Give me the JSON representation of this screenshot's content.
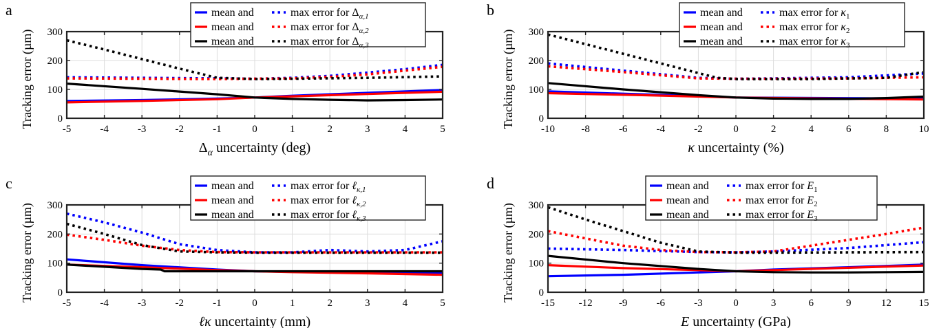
{
  "chart_data": [
    {
      "panel_label": "a",
      "type": "line",
      "xlabel_sym": "Δ",
      "xlabel_sub": "α",
      "xlabel_rest": " uncertainty (deg)",
      "ylabel": "Tracking error (µm)",
      "xlim": [
        -5,
        5
      ],
      "ylim": [
        0,
        300
      ],
      "xticks": [
        -5,
        -4,
        -3,
        -2,
        -1,
        0,
        1,
        2,
        3,
        4,
        5
      ],
      "yticks": [
        0,
        100,
        200,
        300
      ],
      "grid": true,
      "legend_position": "top",
      "legend": [
        {
          "mean_label": "mean and",
          "max_label": "max error for",
          "sym": "Δ",
          "sub": "α,1",
          "color": "#0000ff"
        },
        {
          "mean_label": "mean and",
          "max_label": "max error for",
          "sym": "Δ",
          "sub": "α,2",
          "color": "#ff0000"
        },
        {
          "mean_label": "mean and",
          "max_label": "max error for",
          "sym": "Δ",
          "sub": "α,3",
          "color": "#000000"
        }
      ],
      "series": [
        {
          "kind": "mean",
          "color": "#0000ff",
          "x": [
            -5,
            -3,
            -1,
            0,
            1,
            3,
            5
          ],
          "y": [
            60,
            63,
            68,
            72,
            78,
            88,
            98
          ]
        },
        {
          "kind": "mean",
          "color": "#ff0000",
          "x": [
            -5,
            -3,
            -1,
            0,
            1,
            3,
            5
          ],
          "y": [
            55,
            60,
            66,
            72,
            76,
            84,
            92
          ]
        },
        {
          "kind": "mean",
          "color": "#000000",
          "x": [
            -5,
            -3,
            -1,
            0,
            1,
            2,
            3,
            4,
            5
          ],
          "y": [
            120,
            102,
            83,
            72,
            67,
            64,
            62,
            63,
            65
          ]
        },
        {
          "kind": "max",
          "color": "#0000ff",
          "x": [
            -5,
            -3,
            -1,
            0,
            1,
            2,
            3,
            4,
            5
          ],
          "y": [
            142,
            140,
            138,
            137,
            140,
            147,
            158,
            170,
            185
          ]
        },
        {
          "kind": "max",
          "color": "#ff0000",
          "x": [
            -5,
            -3,
            -1,
            0,
            1,
            2,
            3,
            4,
            5
          ],
          "y": [
            138,
            137,
            136,
            137,
            138,
            143,
            152,
            165,
            178
          ]
        },
        {
          "kind": "max",
          "color": "#000000",
          "x": [
            -5,
            -4,
            -3,
            -2,
            -1,
            0,
            1,
            3,
            5
          ],
          "y": [
            270,
            238,
            205,
            172,
            140,
            136,
            137,
            140,
            145
          ]
        }
      ]
    },
    {
      "panel_label": "b",
      "type": "line",
      "xlabel_sym": "κ",
      "xlabel_sub": "",
      "xlabel_rest": " uncertainty (%)",
      "ylabel": "Tracking error (µm)",
      "xlim": [
        -10,
        10
      ],
      "ylim": [
        0,
        300
      ],
      "xticks": [
        -10,
        -8,
        -6,
        -4,
        -2,
        0,
        2,
        4,
        6,
        8,
        10
      ],
      "yticks": [
        0,
        100,
        200,
        300
      ],
      "grid": true,
      "legend_position": "top-right",
      "legend": [
        {
          "mean_label": "mean and",
          "max_label": "max error for",
          "sym": "κ",
          "sub": "1",
          "color": "#0000ff"
        },
        {
          "mean_label": "mean and",
          "max_label": "max error for",
          "sym": "κ",
          "sub": "2",
          "color": "#ff0000"
        },
        {
          "mean_label": "mean and",
          "max_label": "max error for",
          "sym": "κ",
          "sub": "3",
          "color": "#000000"
        }
      ],
      "series": [
        {
          "kind": "mean",
          "color": "#0000ff",
          "x": [
            -10,
            -5,
            0,
            5,
            10
          ],
          "y": [
            93,
            83,
            72,
            70,
            68
          ]
        },
        {
          "kind": "mean",
          "color": "#ff0000",
          "x": [
            -10,
            -5,
            0,
            5,
            10
          ],
          "y": [
            87,
            80,
            72,
            68,
            65
          ]
        },
        {
          "kind": "mean",
          "color": "#000000",
          "x": [
            -10,
            -6,
            -2,
            0,
            2,
            4,
            6,
            8,
            10
          ],
          "y": [
            122,
            100,
            80,
            72,
            68,
            67,
            67,
            70,
            75
          ]
        },
        {
          "kind": "max",
          "color": "#0000ff",
          "x": [
            -10,
            -6,
            -2,
            0,
            2,
            6,
            10
          ],
          "y": [
            190,
            165,
            140,
            137,
            138,
            142,
            155
          ]
        },
        {
          "kind": "max",
          "color": "#ff0000",
          "x": [
            -10,
            -6,
            -2,
            0,
            2,
            6,
            10
          ],
          "y": [
            180,
            160,
            138,
            137,
            137,
            138,
            142
          ]
        },
        {
          "kind": "max",
          "color": "#000000",
          "x": [
            -10,
            -7,
            -4,
            -1,
            0,
            4,
            8,
            10
          ],
          "y": [
            290,
            240,
            190,
            140,
            136,
            136,
            140,
            160
          ]
        }
      ]
    },
    {
      "panel_label": "c",
      "type": "line",
      "xlabel_sym": "ℓκ",
      "xlabel_sub": "",
      "xlabel_rest": " uncertainty (mm)",
      "ylabel": "Tracking error (µm)",
      "xlim": [
        -5,
        5
      ],
      "ylim": [
        0,
        300
      ],
      "xticks": [
        -5,
        -4,
        -3,
        -2,
        -1,
        0,
        1,
        2,
        3,
        4,
        5
      ],
      "yticks": [
        0,
        100,
        200,
        300
      ],
      "grid": true,
      "legend_position": "top",
      "legend": [
        {
          "mean_label": "mean and",
          "max_label": "max error for",
          "sym": "ℓ",
          "sub": "κ,1",
          "color": "#0000ff"
        },
        {
          "mean_label": "mean and",
          "max_label": "max error for",
          "sym": "ℓ",
          "sub": "κ,2",
          "color": "#ff0000"
        },
        {
          "mean_label": "mean and",
          "max_label": "max error for",
          "sym": "ℓ",
          "sub": "κ,3",
          "color": "#000000"
        }
      ],
      "series": [
        {
          "kind": "mean",
          "color": "#0000ff",
          "x": [
            -5,
            -3,
            -1,
            0,
            1,
            3,
            5
          ],
          "y": [
            113,
            93,
            78,
            72,
            70,
            68,
            66
          ]
        },
        {
          "kind": "mean",
          "color": "#ff0000",
          "x": [
            -5,
            -3,
            -1,
            0,
            1,
            3,
            5
          ],
          "y": [
            95,
            86,
            76,
            72,
            69,
            65,
            60
          ]
        },
        {
          "kind": "mean",
          "color": "#000000",
          "x": [
            -5,
            -3,
            -2.5,
            -2.4,
            -1,
            0,
            2,
            5
          ],
          "y": [
            95,
            80,
            78,
            72,
            72,
            72,
            72,
            72
          ]
        },
        {
          "kind": "max",
          "color": "#0000ff",
          "x": [
            -5,
            -4,
            -3,
            -2,
            -1,
            0,
            1,
            2,
            3,
            4,
            5
          ],
          "y": [
            270,
            240,
            205,
            165,
            145,
            137,
            137,
            145,
            140,
            145,
            175
          ]
        },
        {
          "kind": "max",
          "color": "#ff0000",
          "x": [
            -5,
            -4,
            -3,
            -2,
            -1,
            0,
            2,
            5
          ],
          "y": [
            198,
            180,
            160,
            145,
            138,
            137,
            137,
            137
          ]
        },
        {
          "kind": "max",
          "color": "#000000",
          "x": [
            -5,
            -4,
            -3,
            -2,
            -1,
            0,
            2,
            5
          ],
          "y": [
            235,
            200,
            162,
            140,
            137,
            136,
            136,
            136
          ]
        }
      ]
    },
    {
      "panel_label": "d",
      "type": "line",
      "xlabel_sym": "E",
      "xlabel_sub": "",
      "xlabel_rest": " uncertainty (GPa)",
      "ylabel": "Tracking error (µm)",
      "xlim": [
        -15,
        15
      ],
      "ylim": [
        0,
        300
      ],
      "xticks": [
        -15,
        -12,
        -9,
        -6,
        -3,
        0,
        3,
        6,
        9,
        12,
        15
      ],
      "yticks": [
        0,
        100,
        200,
        300
      ],
      "grid": true,
      "legend_position": "top",
      "legend": [
        {
          "mean_label": "mean and",
          "max_label": "max error for",
          "sym": "E",
          "sub": "1",
          "color": "#0000ff"
        },
        {
          "mean_label": "mean and",
          "max_label": "max error for",
          "sym": "E",
          "sub": "2",
          "color": "#ff0000"
        },
        {
          "mean_label": "mean and",
          "max_label": "max error for",
          "sym": "E",
          "sub": "3",
          "color": "#000000"
        }
      ],
      "series": [
        {
          "kind": "mean",
          "color": "#0000ff",
          "x": [
            -15,
            -9,
            -3,
            0,
            3,
            9,
            15
          ],
          "y": [
            55,
            60,
            68,
            72,
            78,
            86,
            95
          ]
        },
        {
          "kind": "mean",
          "color": "#ff0000",
          "x": [
            -15,
            -9,
            -3,
            0,
            3,
            9,
            15
          ],
          "y": [
            93,
            83,
            76,
            72,
            76,
            84,
            92
          ]
        },
        {
          "kind": "mean",
          "color": "#000000",
          "x": [
            -15,
            -9,
            -3,
            0,
            3,
            6,
            9,
            12,
            15
          ],
          "y": [
            125,
            100,
            80,
            72,
            69,
            68,
            68,
            69,
            70
          ]
        },
        {
          "kind": "max",
          "color": "#0000ff",
          "x": [
            -15,
            -9,
            -3,
            0,
            3,
            9,
            15
          ],
          "y": [
            150,
            145,
            138,
            137,
            140,
            152,
            172
          ]
        },
        {
          "kind": "max",
          "color": "#ff0000",
          "x": [
            -15,
            -12,
            -9,
            -6,
            -3,
            0,
            3,
            6,
            9,
            12,
            15
          ],
          "y": [
            210,
            185,
            160,
            145,
            138,
            137,
            140,
            160,
            180,
            200,
            222
          ]
        },
        {
          "kind": "max",
          "color": "#000000",
          "x": [
            -15,
            -12,
            -9,
            -6,
            -3,
            0,
            3,
            9,
            15
          ],
          "y": [
            292,
            250,
            210,
            170,
            140,
            136,
            136,
            137,
            138
          ]
        }
      ]
    }
  ]
}
